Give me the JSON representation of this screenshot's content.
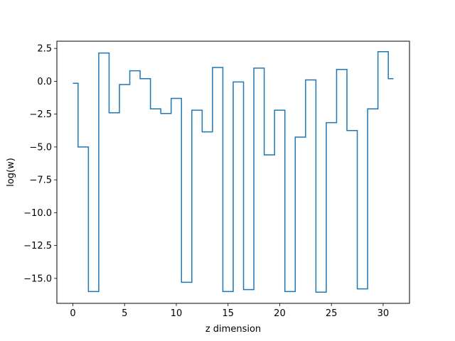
{
  "chart_data": {
    "type": "line",
    "drawstyle": "steps-mid",
    "title": "",
    "xlabel": "z dimension",
    "ylabel": "log(w)",
    "xlim": [
      -1.55,
      32.55
    ],
    "ylim": [
      -16.9,
      3.05
    ],
    "grid": false,
    "legend": "none",
    "x_ticks": [
      0,
      5,
      10,
      15,
      20,
      25,
      30
    ],
    "x_tick_labels": [
      "0",
      "5",
      "10",
      "15",
      "20",
      "25",
      "30"
    ],
    "y_ticks": [
      2.5,
      0,
      -2.5,
      -5,
      -7.5,
      -10,
      -12.5,
      -15
    ],
    "y_tick_labels": [
      "2.5",
      "0.0",
      "−2.5",
      "−5.0",
      "−7.5",
      "−10.0",
      "−12.5",
      "−15.0"
    ],
    "series": [
      {
        "color": "#1f77b4",
        "x": [
          0,
          1,
          2,
          3,
          4,
          5,
          6,
          7,
          8,
          9,
          10,
          11,
          12,
          13,
          14,
          15,
          16,
          17,
          18,
          19,
          20,
          21,
          22,
          23,
          24,
          25,
          26,
          27,
          28,
          29,
          30,
          31
        ],
        "y": [
          -0.15,
          -5.0,
          -16.0,
          2.15,
          -2.4,
          -0.25,
          0.8,
          0.2,
          -2.1,
          -2.45,
          -1.3,
          -15.3,
          -2.2,
          -3.85,
          1.05,
          -16.0,
          -0.05,
          -15.85,
          1.0,
          -5.6,
          -2.2,
          -16.0,
          -4.25,
          0.1,
          -16.05,
          -3.15,
          0.9,
          -3.75,
          -15.8,
          -2.1,
          2.25,
          0.2
        ]
      }
    ]
  }
}
